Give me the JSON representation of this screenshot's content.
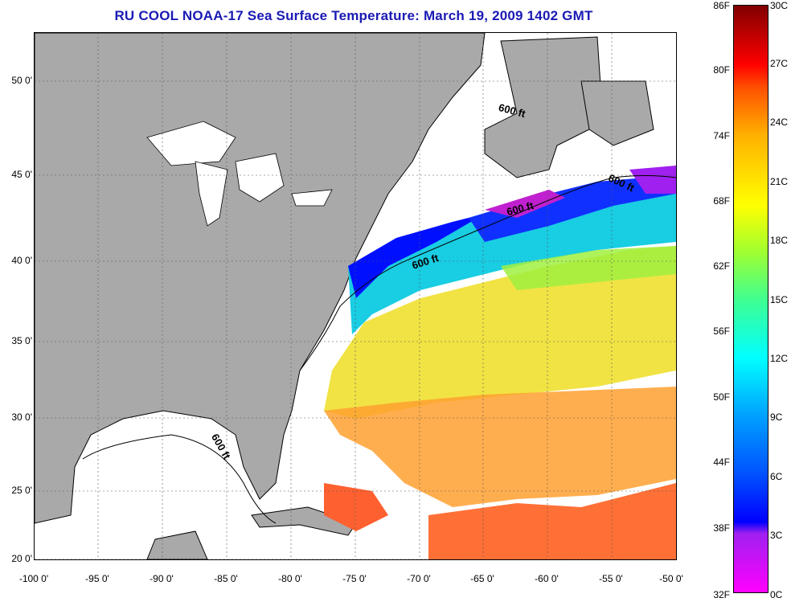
{
  "title": "RU COOL  NOAA-17  Sea Surface Temperature:  March 19, 2009 1402 GMT",
  "lat_labels": [
    "50 0'",
    "45 0'",
    "40 0'",
    "35 0'",
    "30 0'",
    "25 0'",
    "20 0'"
  ],
  "lon_labels": [
    "-100 0'",
    "-95 0'",
    "-90 0'",
    "-85 0'",
    "-80 0'",
    "-75 0'",
    "-70 0'",
    "-65 0'",
    "-60 0'",
    "-55 0'",
    "-50 0'"
  ],
  "colorbar_f": [
    "86F",
    "80F",
    "74F",
    "68F",
    "62F",
    "56F",
    "50F",
    "44F",
    "38F",
    "32F"
  ],
  "colorbar_c": [
    "30C",
    "27C",
    "24C",
    "21C",
    "18C",
    "15C",
    "12C",
    "9C",
    "6C",
    "3C",
    "0C"
  ],
  "depth_labels": [
    "600 ft",
    "600 ft",
    "600 ft",
    "600 ft",
    "600 ft"
  ],
  "colors": {
    "land": "#a9a9a9",
    "title": "#1a1ab4"
  }
}
